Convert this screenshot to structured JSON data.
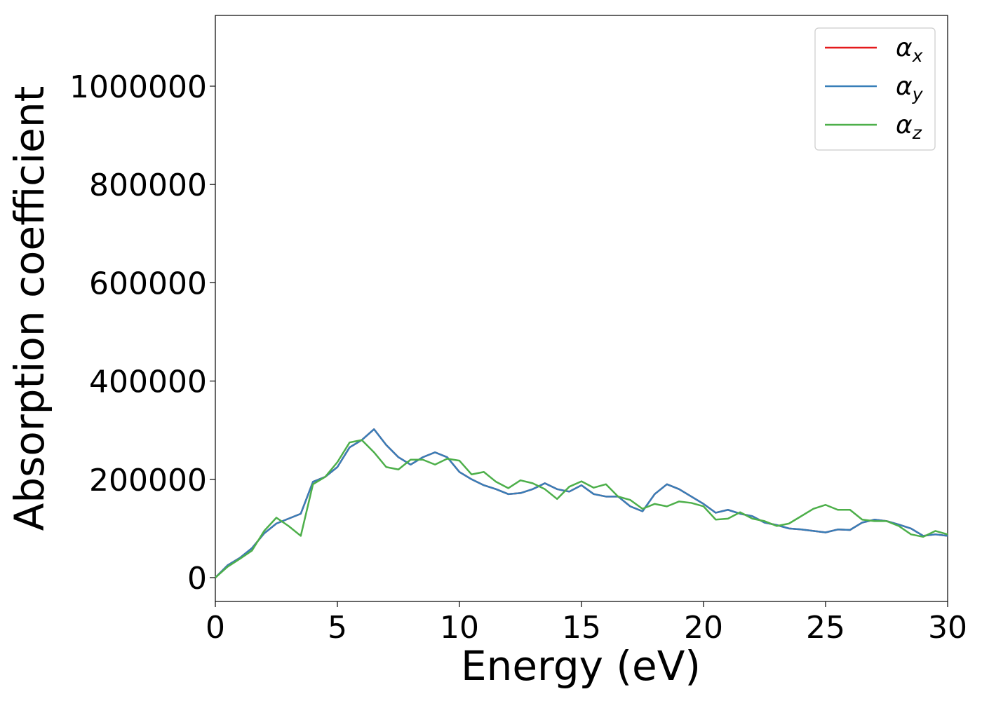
{
  "chart_data": {
    "type": "line",
    "xlabel": "Energy (eV)",
    "ylabel": "Absorption coefficient",
    "x": [
      0,
      0.5,
      1,
      1.5,
      2,
      2.5,
      3,
      3.5,
      4,
      4.5,
      5,
      5.5,
      6,
      6.5,
      7,
      7.5,
      8,
      8.5,
      9,
      9.5,
      10,
      10.5,
      11,
      11.5,
      12,
      12.5,
      13,
      13.5,
      14,
      14.5,
      15,
      15.5,
      16,
      16.5,
      17,
      17.5,
      18,
      18.5,
      19,
      19.5,
      20,
      20.5,
      21,
      21.5,
      22,
      22.5,
      23,
      23.5,
      24,
      24.5,
      25,
      25.5,
      26,
      26.5,
      27,
      27.5,
      28,
      28.5,
      29,
      29.5,
      30
    ],
    "series": [
      {
        "name": "αx",
        "color": "#e41a1c",
        "values": [
          0,
          25000,
          40000,
          60000,
          90000,
          110000,
          120000,
          130000,
          195000,
          205000,
          225000,
          265000,
          280000,
          302000,
          270000,
          245000,
          230000,
          245000,
          255000,
          245000,
          215000,
          200000,
          188000,
          180000,
          170000,
          172000,
          180000,
          192000,
          180000,
          175000,
          188000,
          170000,
          165000,
          165000,
          145000,
          135000,
          170000,
          190000,
          180000,
          165000,
          150000,
          132000,
          138000,
          130000,
          125000,
          112000,
          107000,
          100000,
          98000,
          95000,
          92000,
          98000,
          97000,
          112000,
          118000,
          115000,
          108000,
          100000,
          85000,
          88000,
          85000
        ]
      },
      {
        "name": "αy",
        "color": "#377eb8",
        "values": [
          0,
          25000,
          40000,
          60000,
          90000,
          110000,
          120000,
          130000,
          195000,
          205000,
          225000,
          265000,
          280000,
          302000,
          270000,
          245000,
          230000,
          245000,
          255000,
          245000,
          215000,
          200000,
          188000,
          180000,
          170000,
          172000,
          180000,
          192000,
          180000,
          175000,
          188000,
          170000,
          165000,
          165000,
          145000,
          135000,
          170000,
          190000,
          180000,
          165000,
          150000,
          132000,
          138000,
          130000,
          125000,
          112000,
          107000,
          100000,
          98000,
          95000,
          92000,
          98000,
          97000,
          112000,
          118000,
          115000,
          108000,
          100000,
          85000,
          88000,
          85000
        ]
      },
      {
        "name": "αz",
        "color": "#4daf4a",
        "values": [
          0,
          22000,
          38000,
          55000,
          95000,
          122000,
          105000,
          85000,
          190000,
          205000,
          235000,
          275000,
          280000,
          255000,
          225000,
          220000,
          240000,
          240000,
          230000,
          242000,
          238000,
          210000,
          215000,
          195000,
          182000,
          198000,
          192000,
          180000,
          160000,
          185000,
          196000,
          183000,
          190000,
          165000,
          158000,
          140000,
          150000,
          145000,
          155000,
          152000,
          145000,
          118000,
          120000,
          133000,
          120000,
          115000,
          105000,
          110000,
          125000,
          140000,
          148000,
          138000,
          138000,
          118000,
          115000,
          115000,
          105000,
          88000,
          83000,
          95000,
          88000
        ]
      }
    ],
    "xlim": [
      0,
      30
    ],
    "xticks": [
      0,
      5,
      10,
      15,
      20,
      25,
      30
    ],
    "ylim": [
      -48500,
      1144000
    ],
    "yticks": [
      0,
      200000,
      400000,
      600000,
      800000,
      1000000
    ],
    "legend": "upper right"
  }
}
